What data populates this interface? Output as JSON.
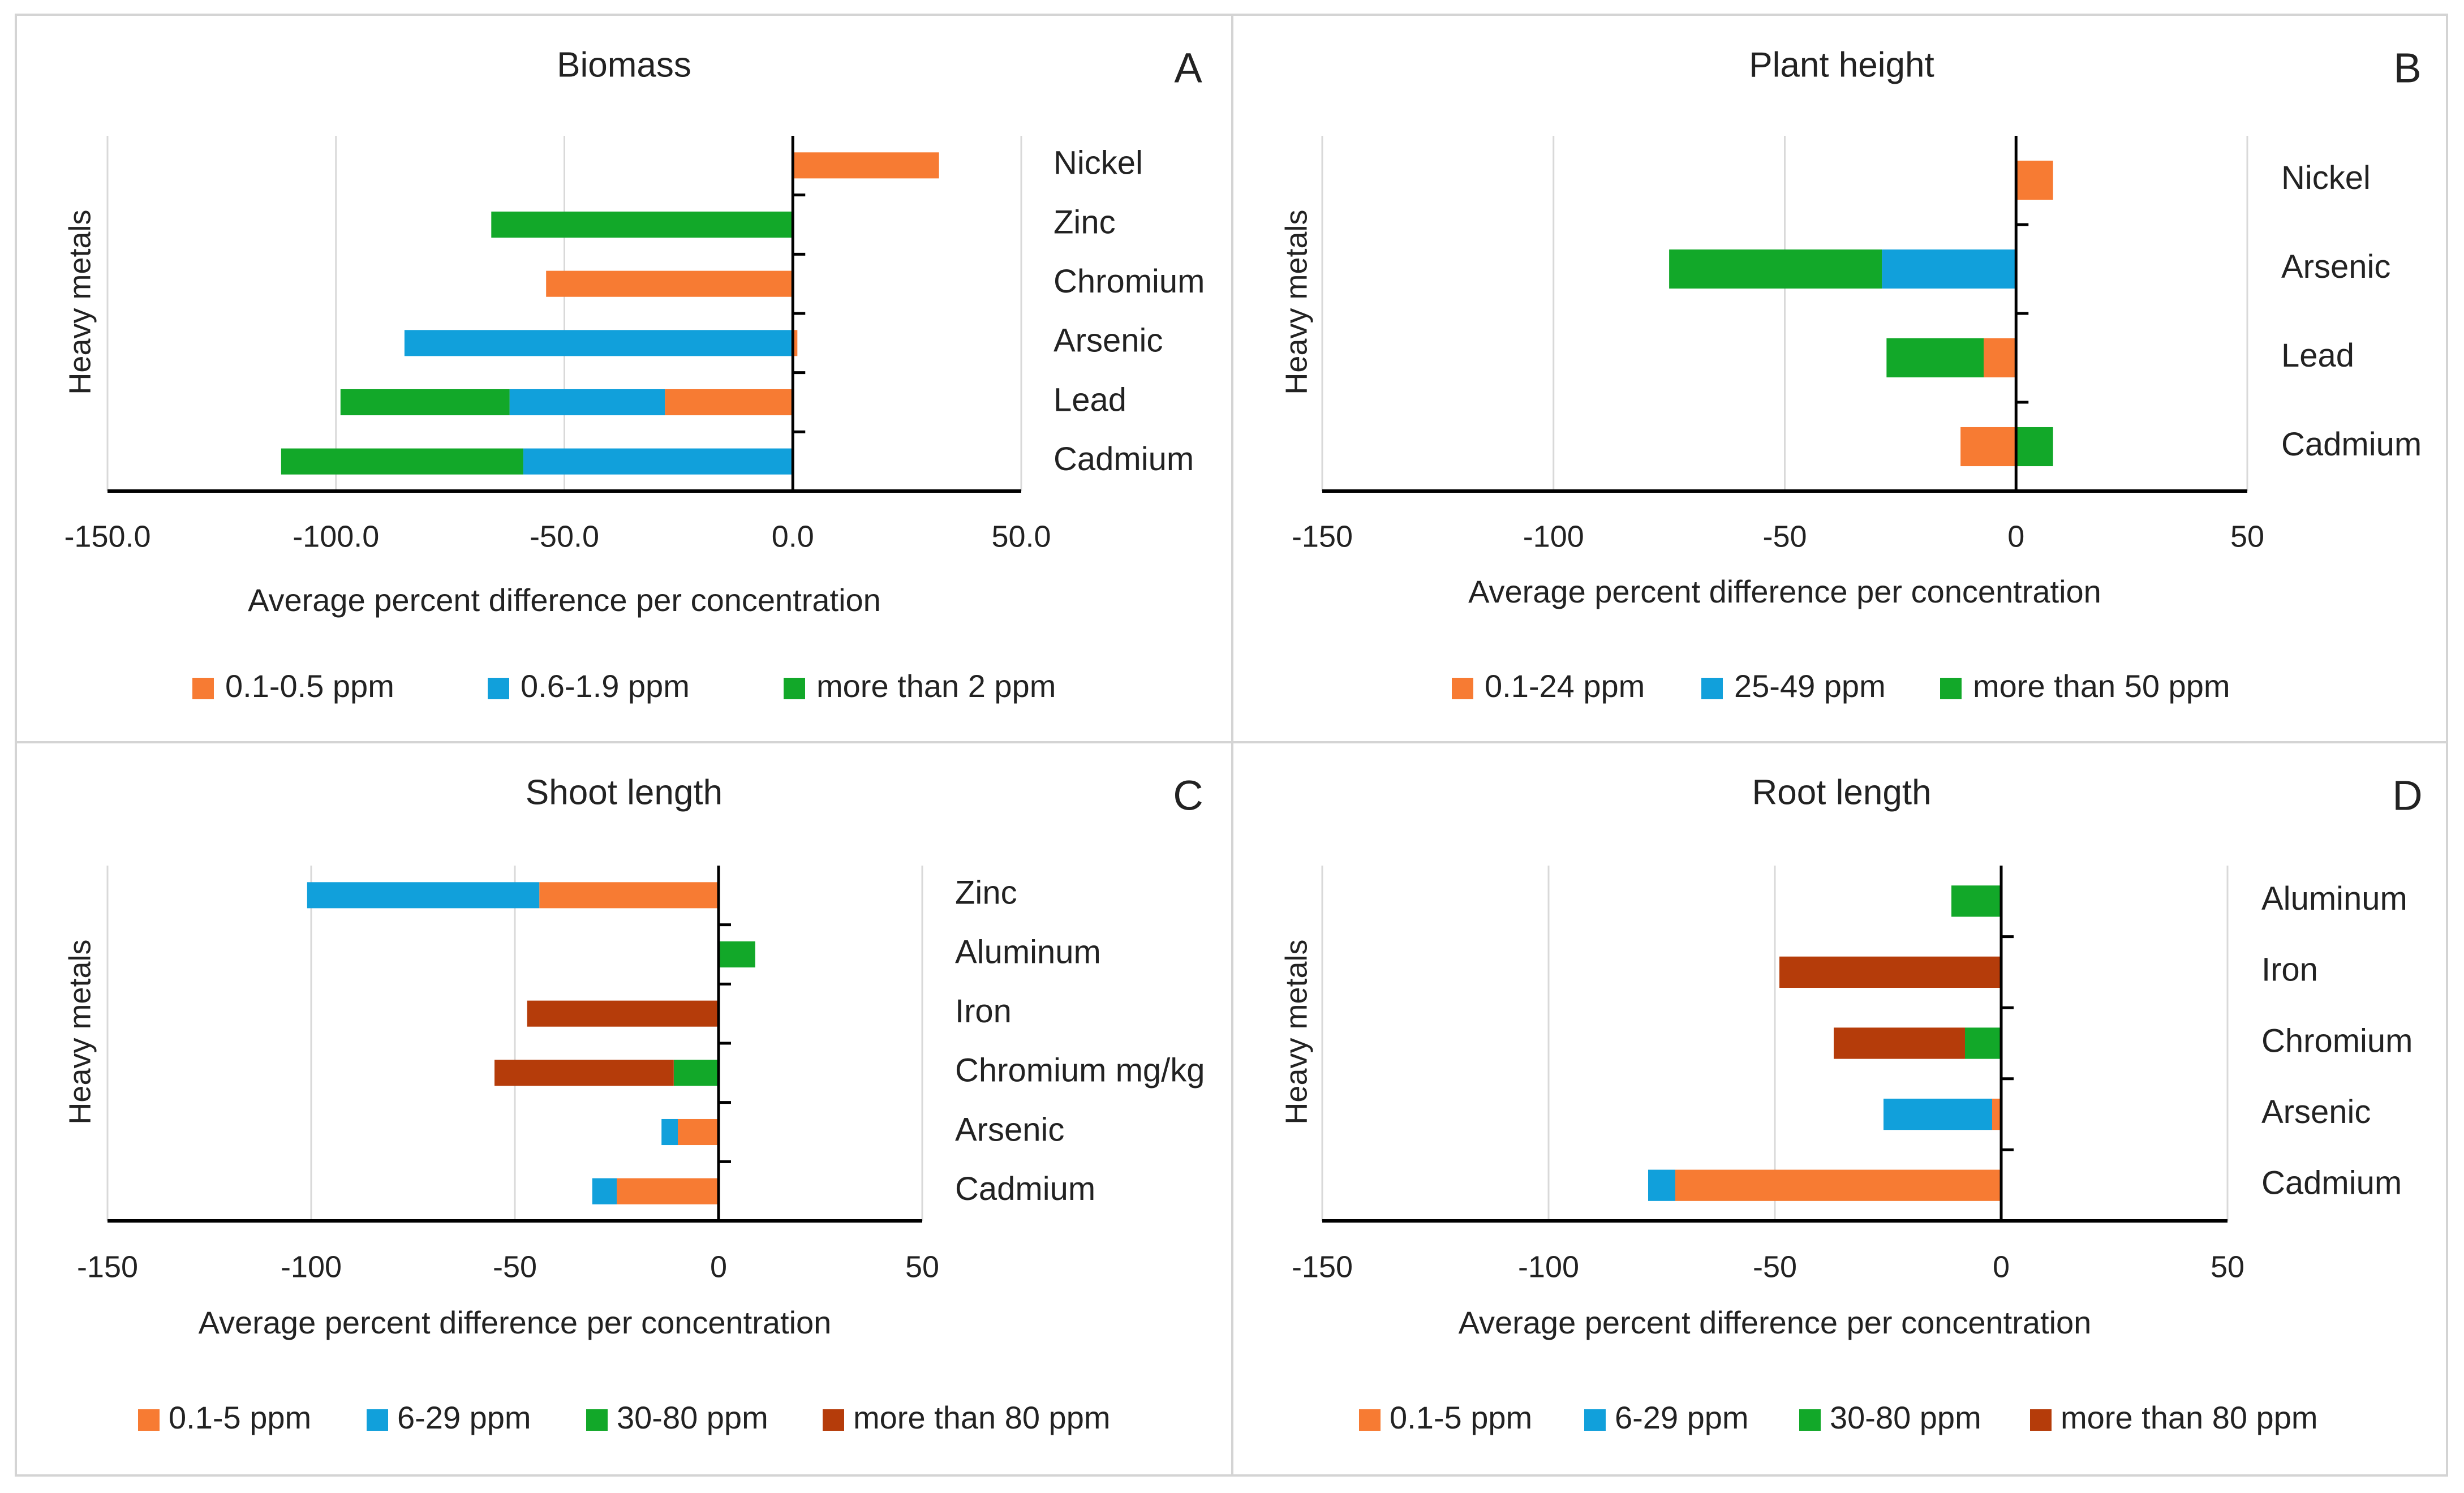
{
  "colors": {
    "orange": "#F77B33",
    "blue": "#11A0DB",
    "green": "#12A829",
    "brown": "#B53C0A",
    "gridline": "#D9D9D9",
    "axis": "#000000",
    "panel_border": "#D4D4D4"
  },
  "chart_data": [
    {
      "panel": "A",
      "type": "bar",
      "orientation": "horizontal",
      "stacked": true,
      "title": "Biomass",
      "ylabel": "Heavy metals",
      "xlabel": "Average percent difference per concentration",
      "xlim": [
        -150,
        50
      ],
      "xticks": [
        -150,
        -100,
        -50,
        0,
        50
      ],
      "xtick_labels": [
        "-150.0",
        "-100.0",
        "-50.0",
        "0.0",
        "50.0"
      ],
      "categories": [
        "Nickel",
        "Zinc",
        "Chromium",
        "Arsenic",
        "Lead",
        "Cadmium"
      ],
      "series": [
        {
          "name": "0.1-0.5 ppm",
          "color": "#F77B33",
          "values": [
            32,
            0,
            -54,
            1,
            -28,
            0
          ]
        },
        {
          "name": "0.6-1.9 ppm",
          "color": "#11A0DB",
          "values": [
            0,
            0,
            0,
            -85,
            -34,
            -59
          ]
        },
        {
          "name": "more than 2 ppm",
          "color": "#12A829",
          "values": [
            0,
            -66,
            0,
            0,
            -37,
            -53
          ]
        }
      ]
    },
    {
      "panel": "B",
      "type": "bar",
      "orientation": "horizontal",
      "stacked": true,
      "title": "Plant height",
      "ylabel": "Heavy metals",
      "xlabel": "Average percent difference per concentration",
      "xlim": [
        -150,
        50
      ],
      "xticks": [
        -150,
        -100,
        -50,
        0,
        50
      ],
      "xtick_labels": [
        "-150",
        "-100",
        "-50",
        "0",
        "50"
      ],
      "categories": [
        "Nickel",
        "Arsenic",
        "Lead",
        "Cadmium"
      ],
      "series": [
        {
          "name": "0.1-24 ppm",
          "color": "#F77B33",
          "values": [
            8,
            0,
            -7,
            -12
          ]
        },
        {
          "name": "25-49 ppm",
          "color": "#11A0DB",
          "values": [
            0,
            -29,
            0,
            0
          ]
        },
        {
          "name": "more than 50 ppm",
          "color": "#12A829",
          "values": [
            0,
            -46,
            -21,
            8
          ]
        }
      ]
    },
    {
      "panel": "C",
      "type": "bar",
      "orientation": "horizontal",
      "stacked": true,
      "title": "Shoot length",
      "ylabel": "Heavy metals",
      "xlabel": "Average percent difference per concentration",
      "xlim": [
        -150,
        50
      ],
      "xticks": [
        -150,
        -100,
        -50,
        0,
        50
      ],
      "xtick_labels": [
        "-150",
        "-100",
        "-50",
        "0",
        "50"
      ],
      "categories": [
        "Zinc",
        "Aluminum",
        "Iron",
        "Chromium mg/kg",
        "Arsenic",
        "Cadmium"
      ],
      "series": [
        {
          "name": "0.1-5 ppm",
          "color": "#F77B33",
          "values": [
            -44,
            0,
            0,
            0,
            -10,
            -25
          ]
        },
        {
          "name": "6-29 ppm",
          "color": "#11A0DB",
          "values": [
            -57,
            0,
            0,
            0,
            -4,
            -6
          ]
        },
        {
          "name": "30-80 ppm",
          "color": "#12A829",
          "values": [
            0,
            9,
            0,
            -11,
            0,
            0
          ]
        },
        {
          "name": "more than 80 ppm",
          "color": "#B53C0A",
          "values": [
            0,
            0,
            -47,
            -44,
            0,
            0
          ]
        }
      ]
    },
    {
      "panel": "D",
      "type": "bar",
      "orientation": "horizontal",
      "stacked": true,
      "title": "Root length",
      "ylabel": "Heavy metals",
      "xlabel": "Average percent difference per concentration",
      "xlim": [
        -150,
        50
      ],
      "xticks": [
        -150,
        -100,
        -50,
        0,
        50
      ],
      "xtick_labels": [
        "-150",
        "-100",
        "-50",
        "0",
        "50"
      ],
      "categories": [
        "Aluminum",
        "Iron",
        "Chromium",
        "Arsenic",
        "Cadmium"
      ],
      "series": [
        {
          "name": "0.1-5 ppm",
          "color": "#F77B33",
          "values": [
            0,
            0,
            0,
            -2,
            -72
          ]
        },
        {
          "name": "6-29 ppm",
          "color": "#11A0DB",
          "values": [
            0,
            0,
            0,
            -24,
            -6
          ]
        },
        {
          "name": "30-80 ppm",
          "color": "#12A829",
          "values": [
            -11,
            0,
            -8,
            0,
            0
          ]
        },
        {
          "name": "more than 80 ppm",
          "color": "#B53C0A",
          "values": [
            0,
            -49,
            -29,
            0,
            0
          ]
        }
      ]
    }
  ]
}
